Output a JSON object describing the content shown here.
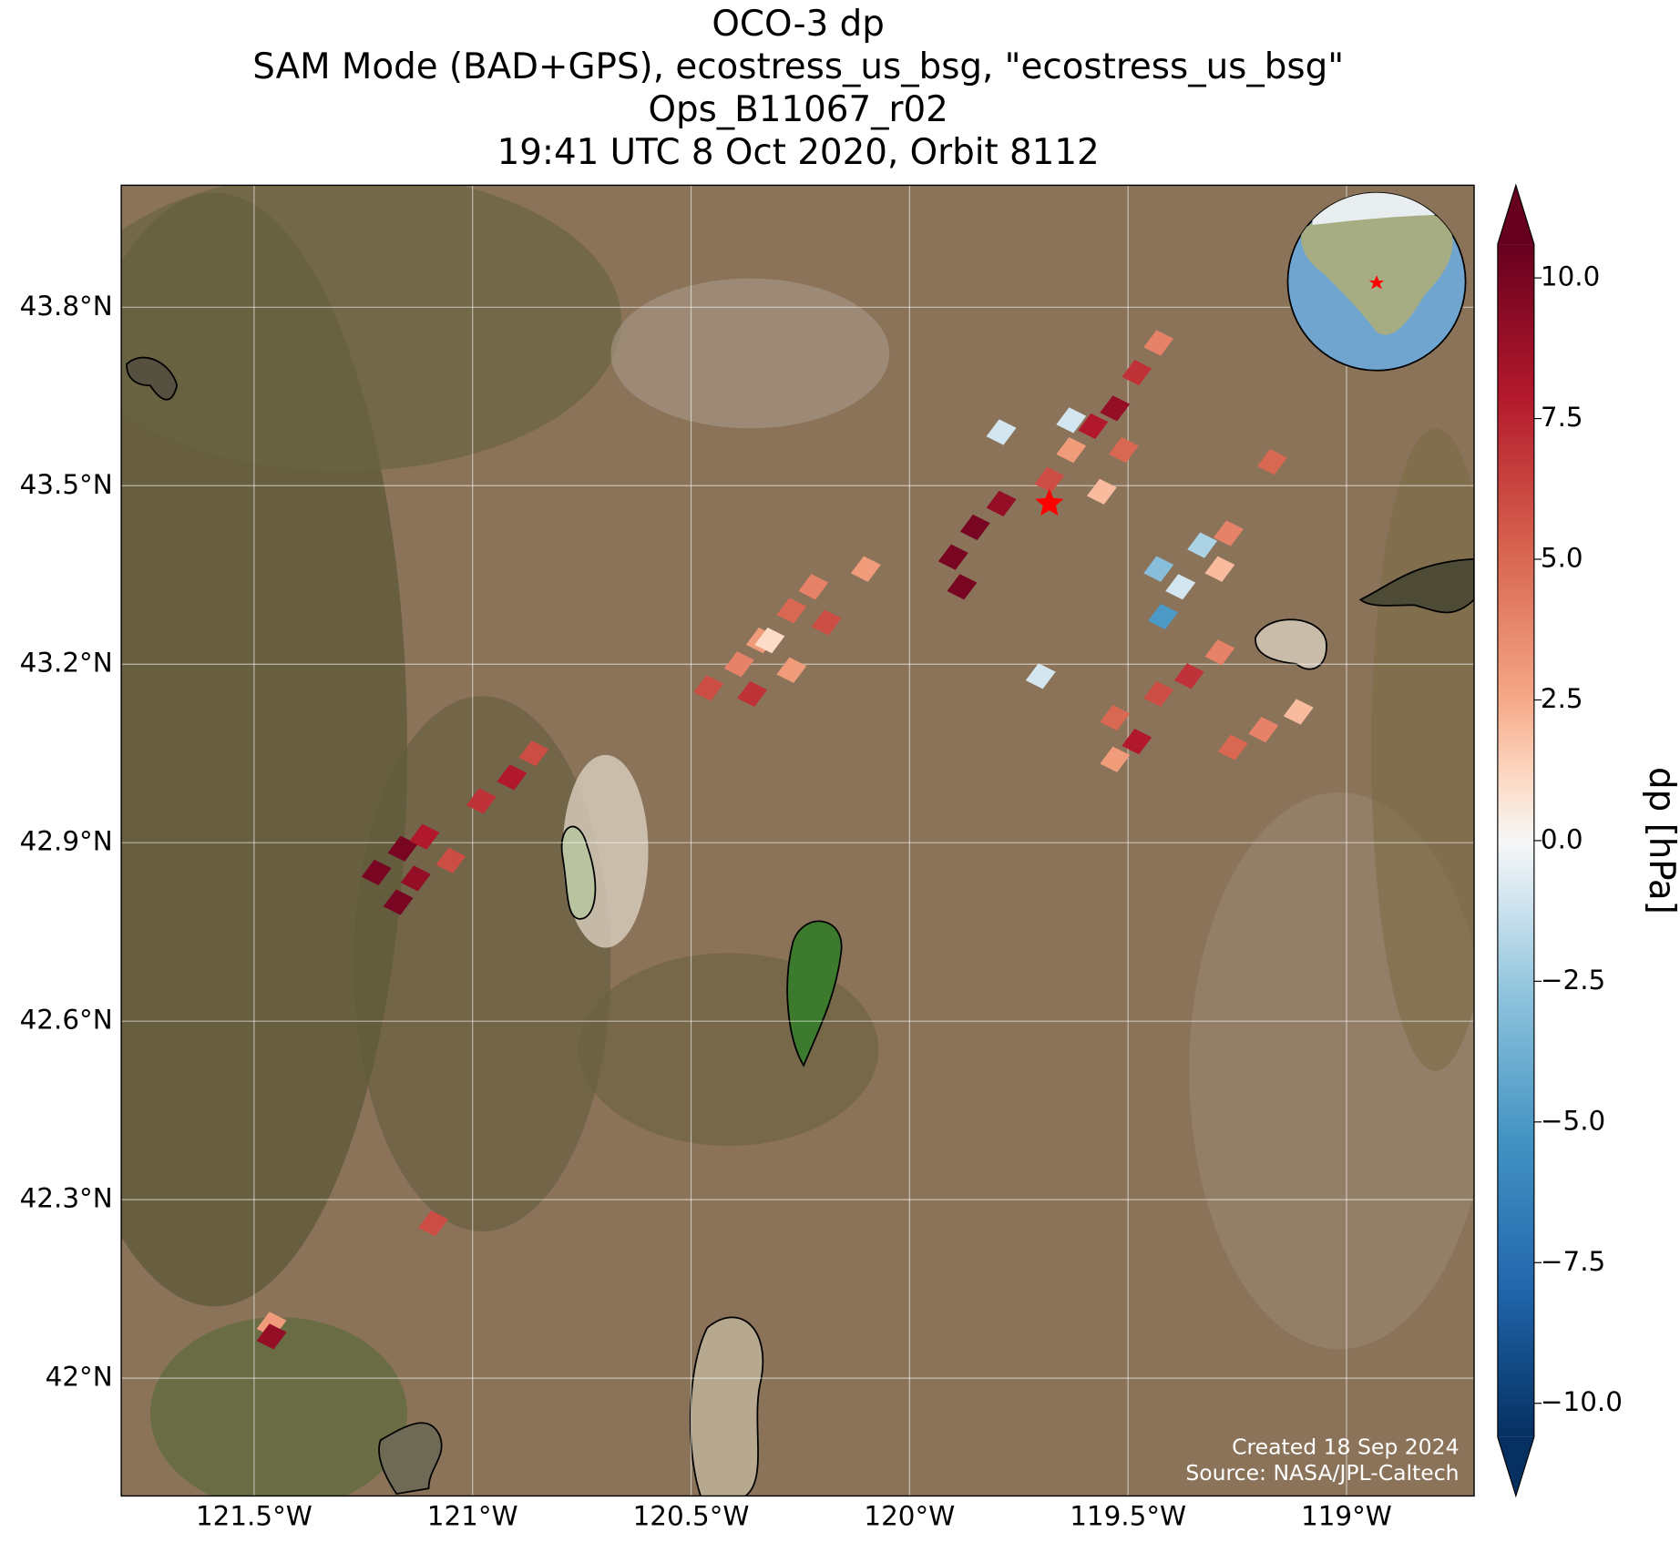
{
  "chart_data": {
    "type": "map",
    "title_lines": [
      "OCO-3 dp",
      "SAM Mode (BAD+GPS), ecostress_us_bsg, \"ecostress_us_bsg\"",
      "Ops_B11067_r02",
      "19:41 UTC 8 Oct 2020, Orbit 8112"
    ],
    "xlim": [
      -121.804,
      -118.708
    ],
    "ylim": [
      41.802,
      44.005
    ],
    "xticks": [
      {
        "value": -121.5,
        "label": "121.5°W"
      },
      {
        "value": -121,
        "label": "121°W"
      },
      {
        "value": -120.5,
        "label": "120.5°W"
      },
      {
        "value": -120,
        "label": "120°W"
      },
      {
        "value": -119.5,
        "label": "119.5°W"
      },
      {
        "value": -119,
        "label": "119°W"
      }
    ],
    "yticks": [
      {
        "value": 42,
        "label": "42°N"
      },
      {
        "value": 42.3,
        "label": "42.3°N"
      },
      {
        "value": 42.6,
        "label": "42.6°N"
      },
      {
        "value": 42.9,
        "label": "42.9°N"
      },
      {
        "value": 43.2,
        "label": "43.2°N"
      },
      {
        "value": 43.5,
        "label": "43.5°N"
      },
      {
        "value": 43.8,
        "label": "43.8°N"
      }
    ],
    "grid": true,
    "colorbar_label": "dp [hPa]",
    "colorbar_lim": [
      -10.6,
      10.6
    ],
    "colorbar_ticks": [
      {
        "value": -10,
        "label": "−10.0"
      },
      {
        "value": -7.5,
        "label": "−7.5"
      },
      {
        "value": -5,
        "label": "−5.0"
      },
      {
        "value": -2.5,
        "label": "−2.5"
      },
      {
        "value": 0,
        "label": "0.0"
      },
      {
        "value": 2.5,
        "label": "2.5"
      },
      {
        "value": 5,
        "label": "5.0"
      },
      {
        "value": 7.5,
        "label": "7.5"
      },
      {
        "value": 10,
        "label": "10.0"
      }
    ],
    "colormap": "RdBu_r",
    "target": {
      "lon": -119.68,
      "lat": 43.47,
      "color": "#ff0000"
    },
    "points": {
      "lon": [
        -121.22,
        -121.16,
        -121.13,
        -121.17,
        -121.11,
        -121.05,
        -120.98,
        -120.91,
        -120.86,
        -120.46,
        -120.39,
        -120.34,
        -120.27,
        -120.22,
        -120.36,
        -120.27,
        -120.19,
        -120.1,
        -120.32,
        -119.9,
        -119.85,
        -119.79,
        -119.88,
        -119.68,
        -119.63,
        -119.58,
        -119.53,
        -119.48,
        -119.43,
        -119.56,
        -119.51,
        -119.79,
        -119.63,
        -119.43,
        -119.38,
        -119.33,
        -119.42,
        -119.29,
        -119.27,
        -119.53,
        -119.48,
        -119.43,
        -119.36,
        -119.29,
        -119.53,
        -119.26,
        -119.19,
        -119.11,
        -119.17,
        -121.46,
        -121.46,
        -121.09,
        -119.7
      ],
      "lat": [
        42.85,
        42.89,
        42.84,
        42.8,
        42.91,
        42.87,
        42.97,
        43.01,
        43.05,
        43.16,
        43.2,
        43.24,
        43.29,
        43.33,
        43.15,
        43.19,
        43.27,
        43.36,
        43.24,
        43.38,
        43.43,
        43.47,
        43.33,
        43.51,
        43.56,
        43.6,
        43.63,
        43.69,
        43.74,
        43.49,
        43.56,
        43.59,
        43.61,
        43.36,
        43.33,
        43.4,
        43.28,
        43.36,
        43.42,
        43.11,
        43.07,
        43.15,
        43.18,
        43.22,
        43.04,
        43.06,
        43.09,
        43.12,
        43.54,
        42.09,
        42.07,
        42.26,
        43.18
      ],
      "dp": [
        10,
        10,
        9,
        10,
        8,
        6,
        7,
        8,
        6,
        6,
        4,
        3,
        5,
        4,
        7,
        3,
        6,
        3,
        1,
        10,
        10,
        9,
        10,
        6,
        3,
        8,
        9,
        7,
        4,
        2,
        5,
        -1,
        -1,
        -3,
        -1,
        -2,
        -5,
        2,
        4,
        5,
        8,
        6,
        7,
        4,
        3,
        5,
        4,
        2,
        5,
        3,
        9,
        6,
        -1
      ]
    },
    "credits": [
      "Created 18 Sep 2024",
      "Source: NASA/JPL-Caltech"
    ]
  }
}
